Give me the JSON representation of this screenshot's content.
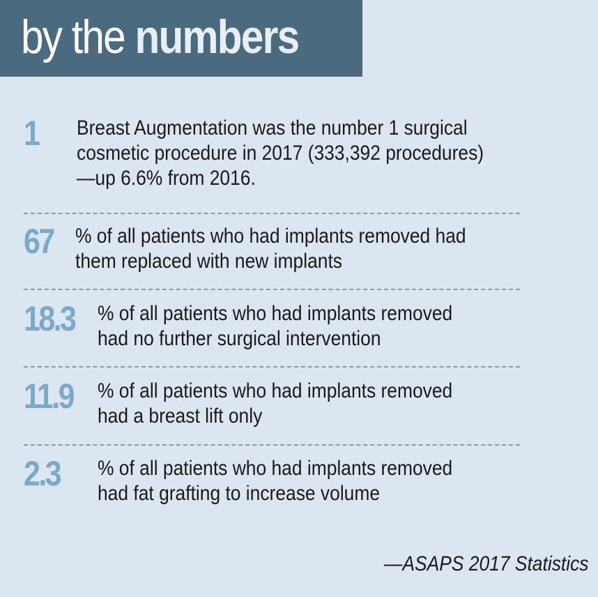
{
  "header": {
    "title_light": "by the ",
    "title_bold": "numbers"
  },
  "stats": [
    {
      "number": "1",
      "lines": [
        "Breast Augmentation was the number 1 surgical",
        "cosmetic procedure in 2017 (333,392 procedures)",
        "—up 6.6% from 2016."
      ]
    },
    {
      "number": "67",
      "lines": [
        "% of all patients who had implants removed had",
        "them replaced with new implants"
      ]
    },
    {
      "number": "18.3",
      "lines": [
        "% of all patients who had implants removed",
        "had no further surgical intervention"
      ]
    },
    {
      "number": "11.9",
      "lines": [
        "% of all patients who had implants removed",
        "had a breast lift only"
      ]
    },
    {
      "number": "2.3",
      "lines": [
        "% of all patients who had implants removed",
        "had fat grafting to increase volume"
      ]
    }
  ],
  "source": "—ASAPS 2017 Statistics",
  "colors": {
    "background": "#dbe6f0",
    "header_bg": "#4a6a80",
    "number_color": "#7ba9c9",
    "text_color": "#1a1a1a"
  }
}
